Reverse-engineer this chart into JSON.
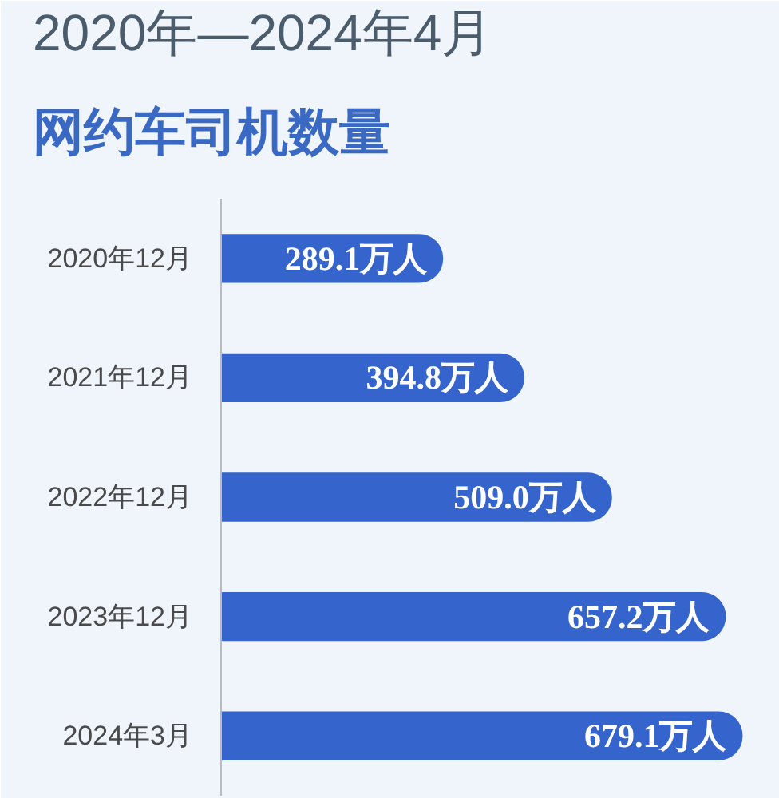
{
  "chart_data": {
    "type": "bar",
    "orientation": "horizontal",
    "title": "2020年—2024年4月",
    "subtitle": "网约车司机数量",
    "categories": [
      "2020年12月",
      "2021年12月",
      "2022年12月",
      "2023年12月",
      "2024年3月"
    ],
    "values": [
      289.1,
      394.8,
      509.0,
      657.2,
      679.1
    ],
    "value_labels": [
      "289.1万人",
      "394.8万人",
      "509.0万人",
      "657.2万人",
      "679.1万人"
    ],
    "color": "#3464cc",
    "xlim": [
      0,
      715
    ],
    "tick_labels": "y"
  }
}
